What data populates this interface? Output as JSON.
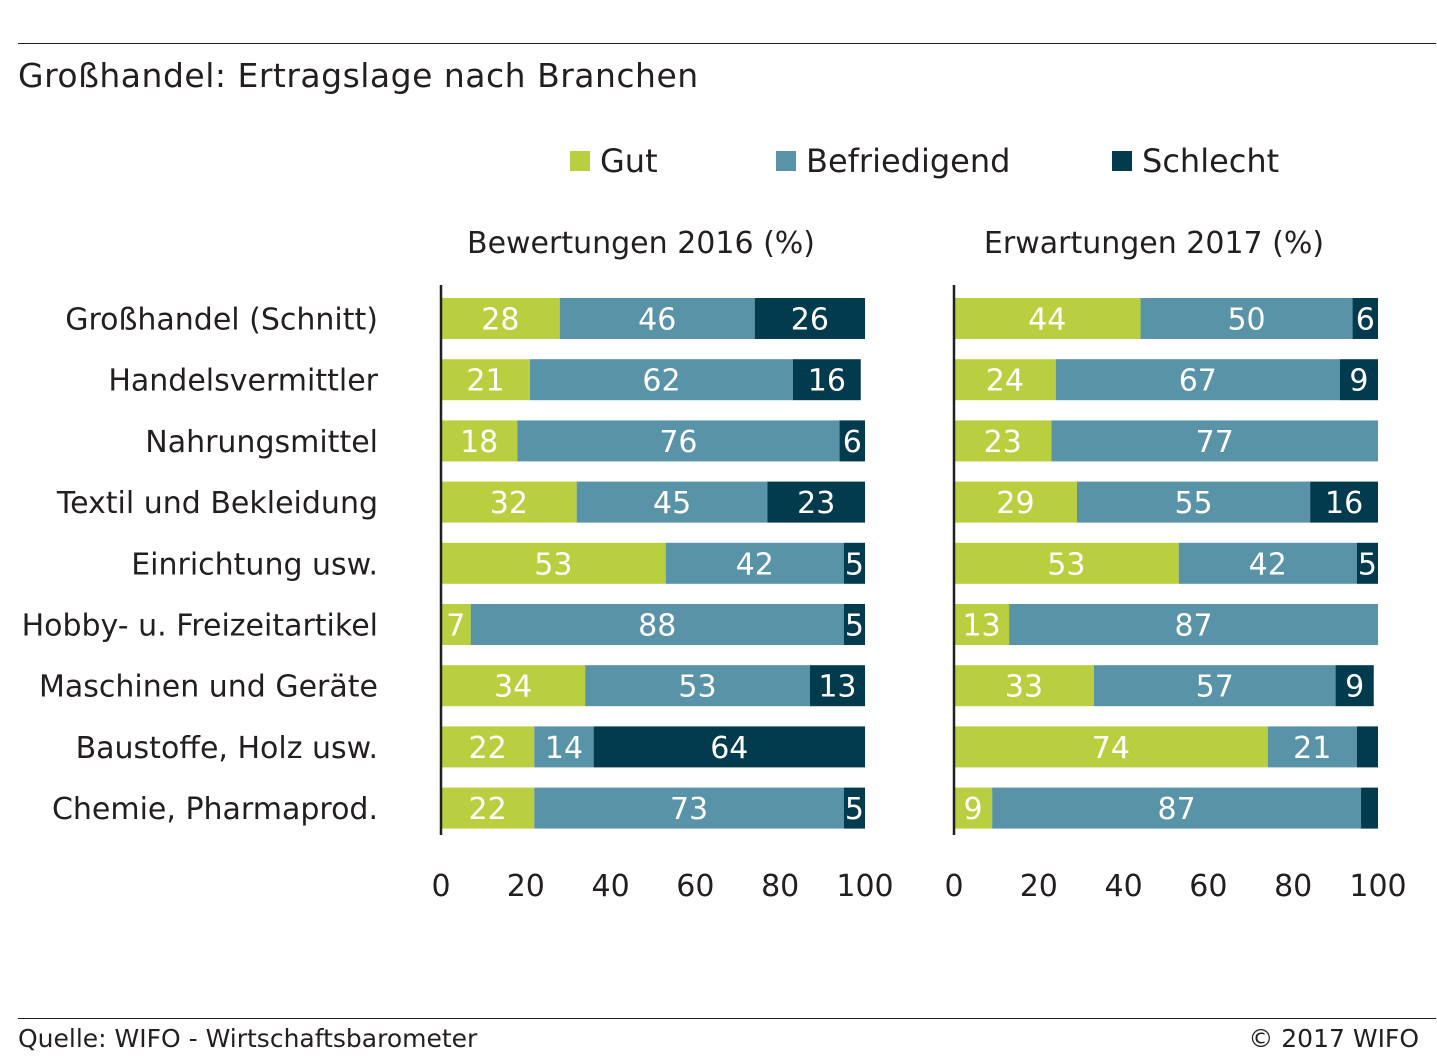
{
  "title": "Großhandel: Ertragslage nach Branchen",
  "source": "Quelle: WIFO - Wirtschaftsbarometer",
  "copyright": "© 2017 WIFO",
  "colors": {
    "gut": "#b9cf3f",
    "befriedigend": "#5893a8",
    "schlecht": "#033b4e",
    "text": "#231f20"
  },
  "chart_data": {
    "type": "bar",
    "orientation": "horizontal-stacked",
    "legend": [
      "Gut",
      "Befriedigend",
      "Schlecht"
    ],
    "legend_position": "top",
    "categories": [
      "Großhandel (Schnitt)",
      "Handelsvermittler",
      "Nahrungsmittel",
      "Textil und Bekleidung",
      "Einrichtung usw.",
      "Hobby- u. Freizeitartikel",
      "Maschinen und Geräte",
      "Baustoffe, Holz usw.",
      "Chemie, Pharmaprod."
    ],
    "panels": [
      {
        "title": "Bewertungen 2016 (%)",
        "xlim": [
          0,
          100
        ],
        "ticks": [
          0,
          20,
          40,
          60,
          80,
          100
        ],
        "series": [
          {
            "name": "Gut",
            "values": [
              28,
              21,
              18,
              32,
              53,
              7,
              34,
              22,
              22
            ],
            "labels": [
              "28",
              "21",
              "18",
              "32",
              "53",
              "7",
              "34",
              "22",
              "22"
            ]
          },
          {
            "name": "Befriedigend",
            "values": [
              46,
              62,
              76,
              45,
              42,
              88,
              53,
              14,
              73
            ],
            "labels": [
              "46",
              "62",
              "76",
              "45",
              "42",
              "88",
              "53",
              "14",
              "73"
            ]
          },
          {
            "name": "Schlecht",
            "values": [
              26,
              16,
              6,
              23,
              5,
              5,
              13,
              64,
              5
            ],
            "labels": [
              "26",
              "16",
              "6",
              "23",
              "5",
              "5",
              "13",
              "64",
              "5"
            ]
          }
        ]
      },
      {
        "title": "Erwartungen 2017 (%)",
        "xlim": [
          0,
          100
        ],
        "ticks": [
          0,
          20,
          40,
          60,
          80,
          100
        ],
        "series": [
          {
            "name": "Gut",
            "values": [
              44,
              24,
              23,
              29,
              53,
              13,
              33,
              74,
              9
            ],
            "labels": [
              "44",
              "24",
              "23",
              "29",
              "53",
              "13",
              "33",
              "74",
              "9"
            ]
          },
          {
            "name": "Befriedigend",
            "values": [
              50,
              67,
              77,
              55,
              42,
              87,
              57,
              21,
              87
            ],
            "labels": [
              "50",
              "67",
              "77",
              "55",
              "42",
              "87",
              "57",
              "21",
              "87"
            ]
          },
          {
            "name": "Schlecht",
            "values": [
              6,
              9,
              0,
              16,
              5,
              0,
              9,
              5,
              4
            ],
            "labels": [
              "6",
              "9",
              "",
              "16",
              "5",
              "",
              "9",
              "",
              ""
            ]
          }
        ]
      }
    ]
  }
}
